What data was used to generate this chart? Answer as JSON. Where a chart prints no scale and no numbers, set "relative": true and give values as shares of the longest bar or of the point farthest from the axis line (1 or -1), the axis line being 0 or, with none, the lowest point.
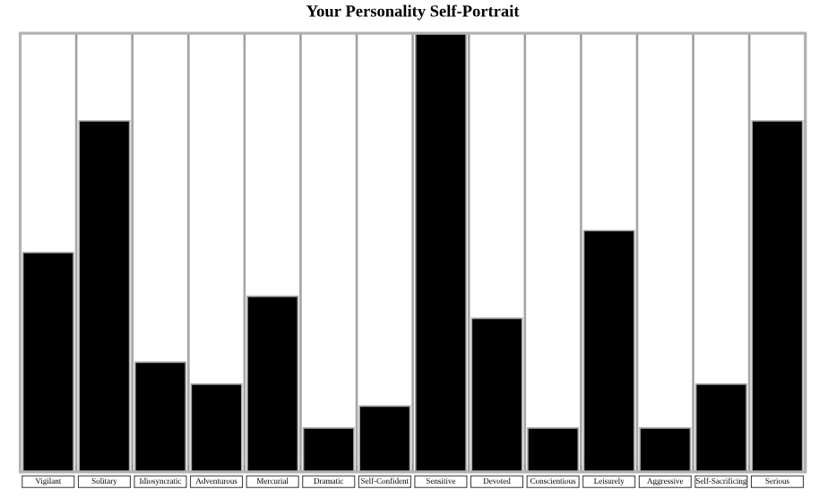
{
  "chart_data": {
    "type": "bar",
    "title": "Your Personality Self-Portrait",
    "relative": true,
    "color": "#000000",
    "grid": "x",
    "categories": [
      "Vigilant",
      "Solitary",
      "Idiosyncratic",
      "Adventurous",
      "Mercurial",
      "Dramatic",
      "Self-Confident",
      "Sensitive",
      "Devoted",
      "Conscientious",
      "Leisurely",
      "Aggressive",
      "Self-Sacrificing",
      "Serious"
    ],
    "values": [
      0.5,
      0.8,
      0.25,
      0.2,
      0.4,
      0.1,
      0.15,
      1,
      0.35,
      0.1,
      0.55,
      0.1,
      0.2,
      0.8
    ]
  }
}
